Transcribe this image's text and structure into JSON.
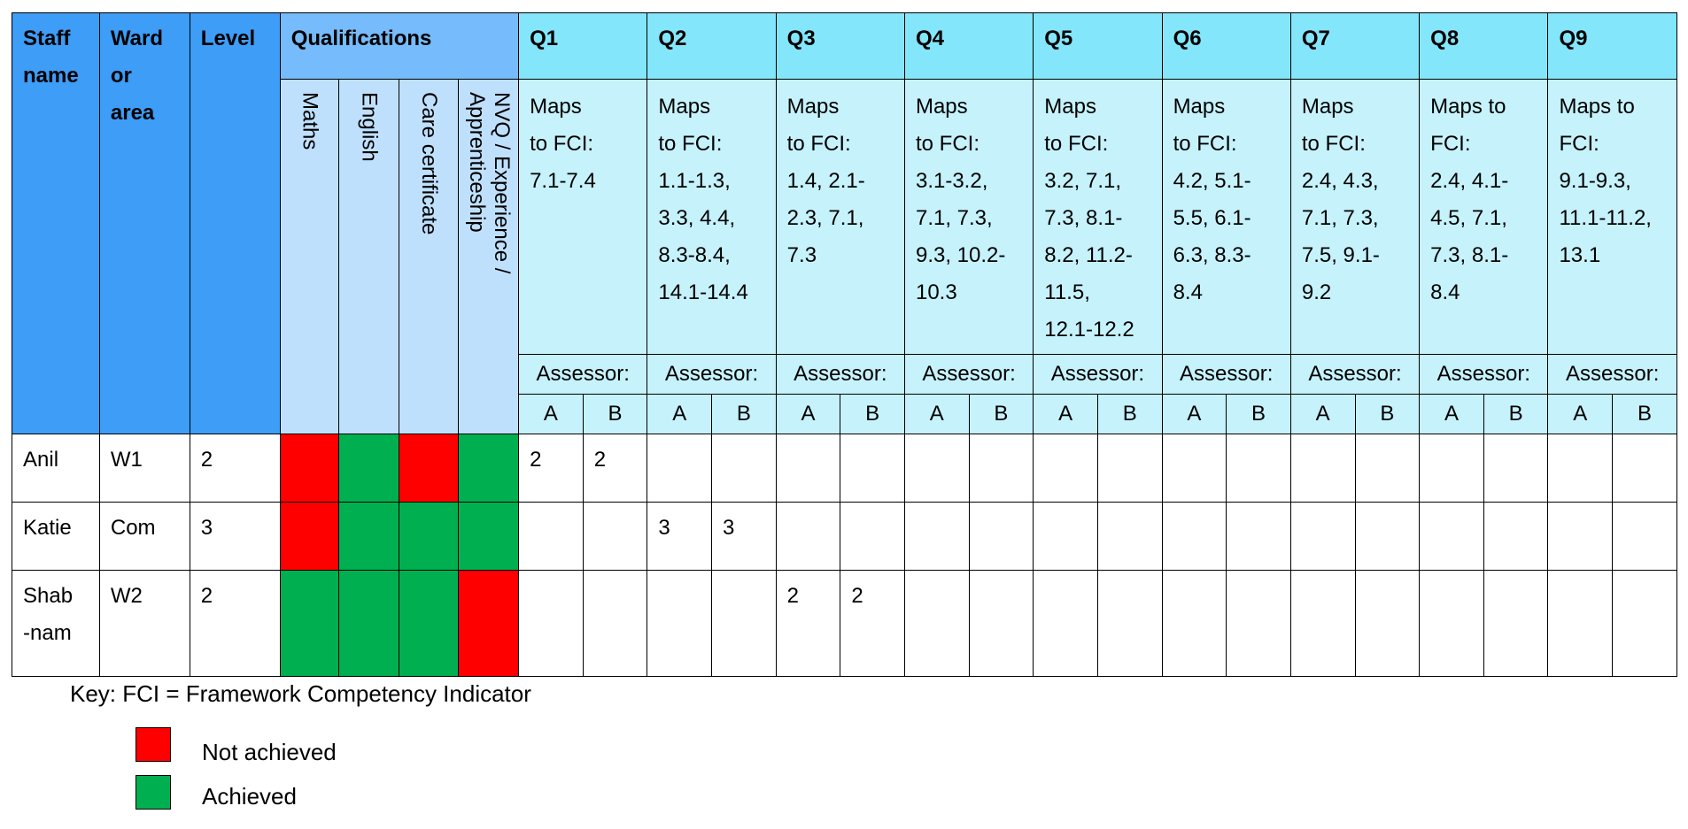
{
  "headers": {
    "staff_name": "Staff\nname",
    "ward_or_area": "Ward\nor\narea",
    "level": "Level",
    "qualifications": "Qualifications",
    "qual_subs": [
      "Maths",
      "English",
      "Care certificate",
      "NVQ / Experience /\nApprenticeship"
    ]
  },
  "questions": [
    {
      "label": "Q1",
      "maps": "Maps\nto FCI:\n 7.1-7.4"
    },
    {
      "label": "Q2",
      "maps": "Maps\nto FCI:\n1.1-1.3,\n3.3, 4.4,\n8.3-8.4,\n14.1-14.4"
    },
    {
      "label": "Q3",
      "maps": "Maps\nto FCI:\n1.4, 2.1-\n2.3, 7.1,\n7.3"
    },
    {
      "label": "Q4",
      "maps": "Maps\nto FCI:\n3.1-3.2,\n7.1, 7.3,\n9.3, 10.2-\n10.3"
    },
    {
      "label": "Q5",
      "maps": "Maps\nto FCI:\n3.2, 7.1,\n7.3, 8.1-\n8.2, 11.2-\n11.5,\n12.1-12.2"
    },
    {
      "label": "Q6",
      "maps": "Maps\nto FCI:\n4.2, 5.1-\n5.5, 6.1-\n6.3, 8.3-\n8.4"
    },
    {
      "label": "Q7",
      "maps": "Maps\nto FCI:\n2.4, 4.3,\n7.1, 7.3,\n7.5, 9.1-\n9.2"
    },
    {
      "label": "Q8",
      "maps": "Maps to\nFCI:\n2.4, 4.1-\n4.5, 7.1,\n7.3, 8.1-\n8.4"
    },
    {
      "label": "Q9",
      "maps": "Maps to\nFCI:\n9.1-9.3,\n11.1-11.2,\n13.1"
    }
  ],
  "assessor_label": "Assessor:",
  "assessor_a": "A",
  "assessor_b": "B",
  "status_colors": {
    "not_achieved": "#ff0000",
    "achieved": "#00b050"
  },
  "rows": [
    {
      "name": "Anil",
      "ward": "W1",
      "level": "2",
      "quals": [
        "not_achieved",
        "achieved",
        "not_achieved",
        "achieved"
      ],
      "scores": [
        [
          "2",
          "2"
        ],
        [
          "",
          ""
        ],
        [
          "",
          ""
        ],
        [
          "",
          ""
        ],
        [
          "",
          ""
        ],
        [
          "",
          ""
        ],
        [
          "",
          ""
        ],
        [
          "",
          ""
        ],
        [
          "",
          ""
        ]
      ]
    },
    {
      "name": "Katie",
      "ward": "Com",
      "level": "3",
      "quals": [
        "not_achieved",
        "achieved",
        "achieved",
        "achieved"
      ],
      "scores": [
        [
          "",
          ""
        ],
        [
          "3",
          "3"
        ],
        [
          "",
          ""
        ],
        [
          "",
          ""
        ],
        [
          "",
          ""
        ],
        [
          "",
          ""
        ],
        [
          "",
          ""
        ],
        [
          "",
          ""
        ],
        [
          "",
          ""
        ]
      ]
    },
    {
      "name": "Shab\n-nam",
      "ward": "W2",
      "level": "2",
      "quals": [
        "achieved",
        "achieved",
        "achieved",
        "not_achieved"
      ],
      "scores": [
        [
          "",
          ""
        ],
        [
          "",
          ""
        ],
        [
          "2",
          "2"
        ],
        [
          "",
          ""
        ],
        [
          "",
          ""
        ],
        [
          "",
          ""
        ],
        [
          "",
          ""
        ],
        [
          "",
          ""
        ],
        [
          "",
          ""
        ]
      ]
    }
  ],
  "key": {
    "text": "Key: FCI = Framework Competency Indicator",
    "not_achieved_label": "Not achieved",
    "achieved_label": "Achieved"
  }
}
